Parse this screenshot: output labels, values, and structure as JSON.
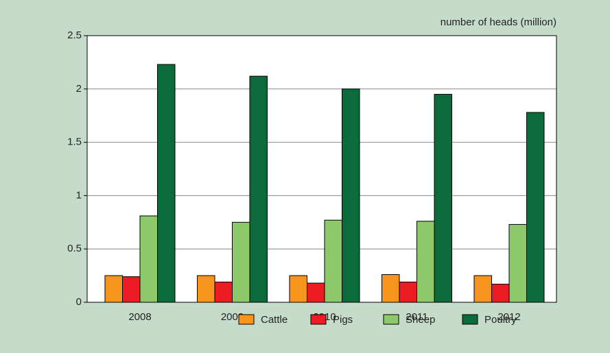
{
  "chart_data": {
    "type": "bar",
    "axis_label": "number of heads (million)",
    "categories": [
      "2008",
      "2009",
      "2010",
      "2011",
      "2012"
    ],
    "series": [
      {
        "name": "Cattle",
        "color": "#f7941d",
        "values": [
          0.25,
          0.25,
          0.25,
          0.26,
          0.25
        ]
      },
      {
        "name": "Pigs",
        "color": "#ed1c24",
        "values": [
          0.24,
          0.19,
          0.18,
          0.19,
          0.17
        ]
      },
      {
        "name": "Sheep",
        "color": "#8dc96b",
        "values": [
          0.81,
          0.75,
          0.77,
          0.76,
          0.73
        ]
      },
      {
        "name": "Poultry",
        "color": "#0b6b3a",
        "values": [
          2.23,
          2.12,
          2.0,
          1.95,
          1.78
        ]
      }
    ],
    "ylim": [
      0,
      2.5
    ],
    "yticks": [
      0,
      0.5,
      1,
      1.5,
      2,
      2.5
    ],
    "grid": true,
    "legend": "bottom"
  }
}
